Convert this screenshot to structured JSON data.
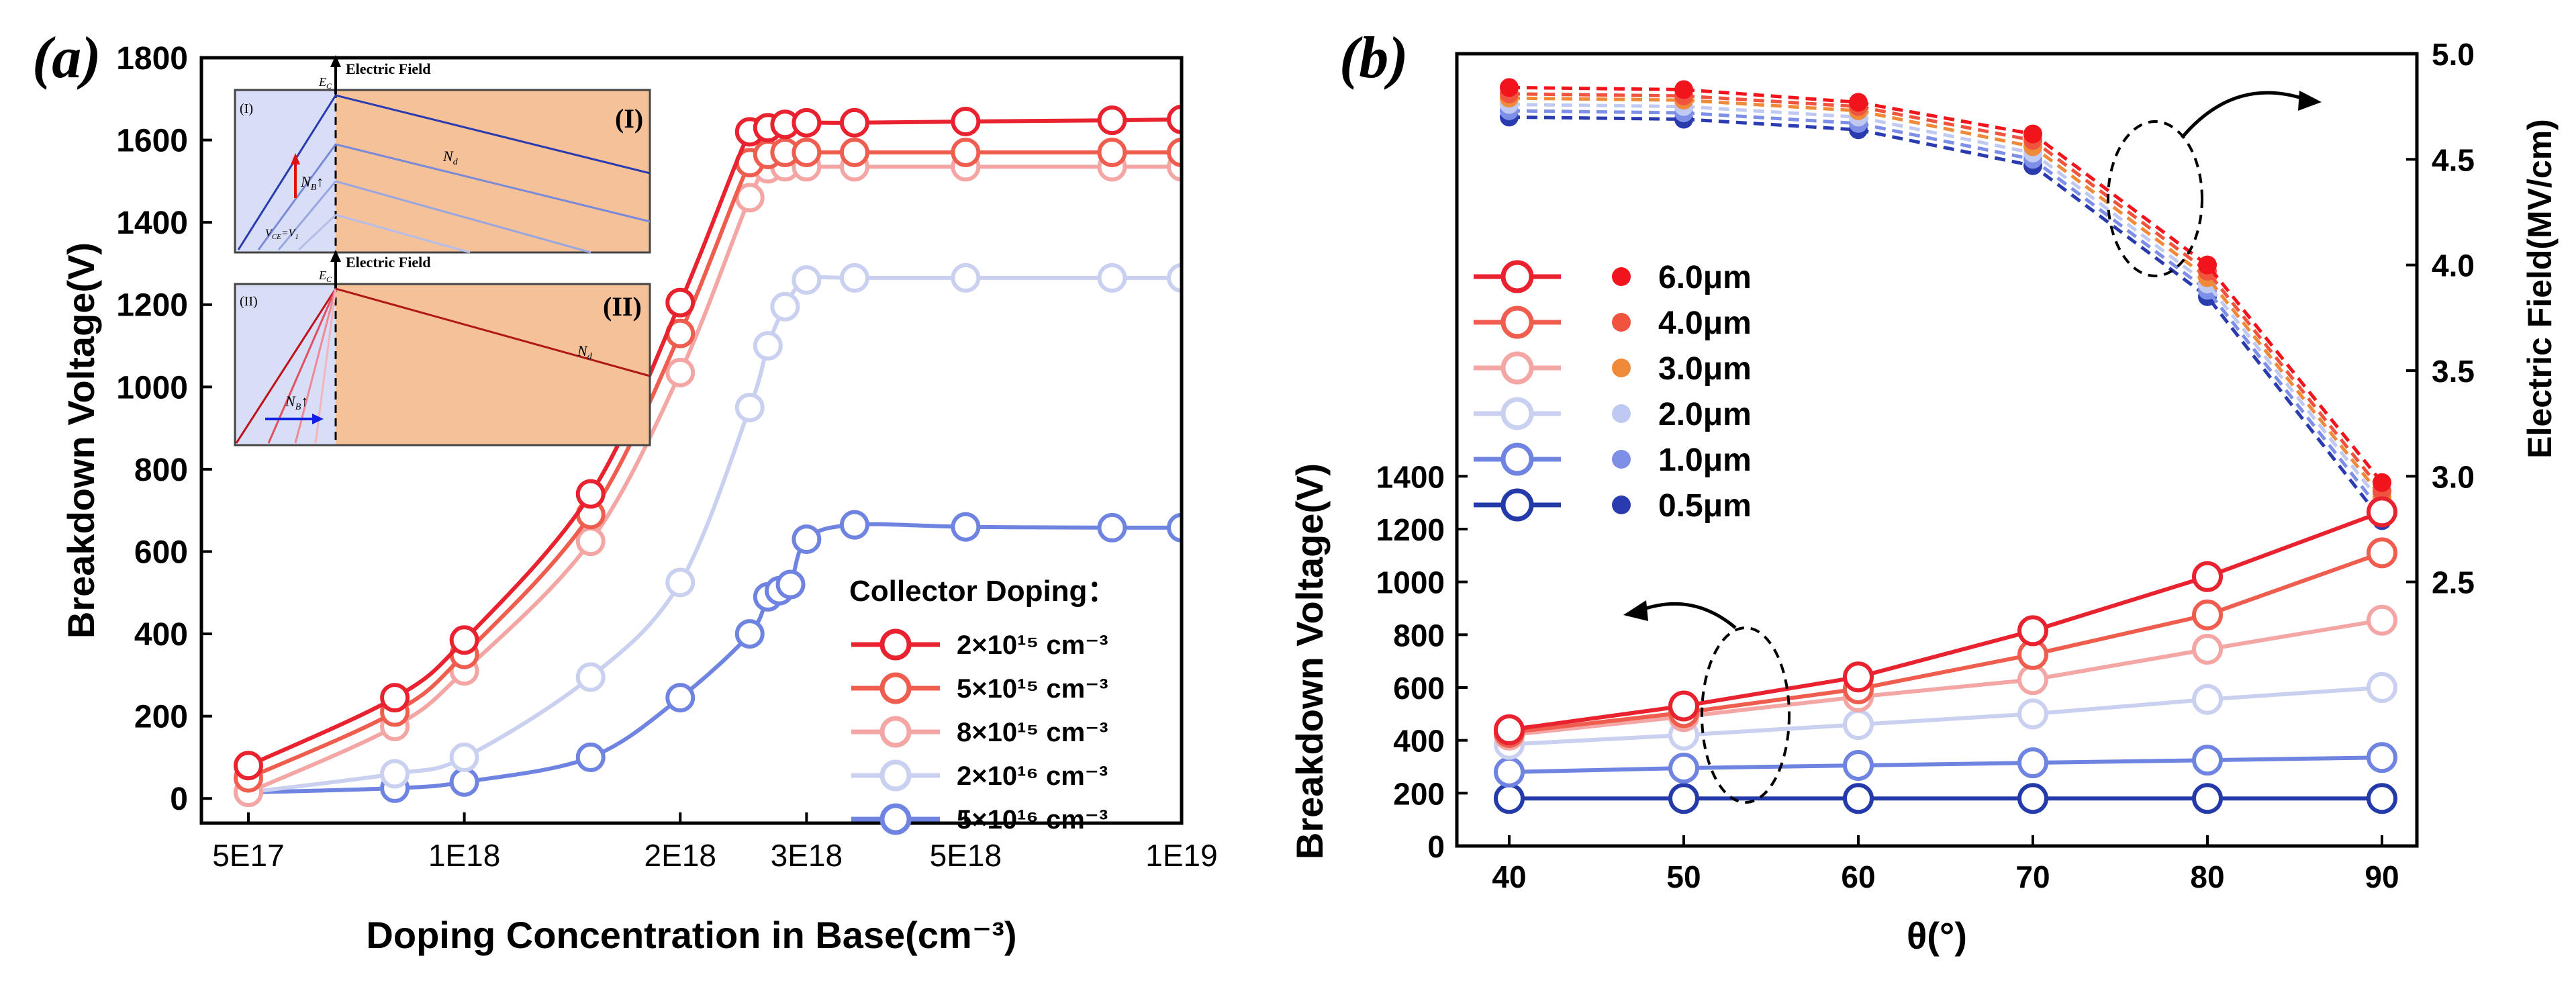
{
  "chart_data": [
    {
      "type": "line",
      "panel_label": "(a)",
      "xlabel": "Doping Concentration in Base(cm⁻³)",
      "ylabel": "Breakdown Voltage(V)",
      "x_scale": "log",
      "xlim": [
        4.3e+17,
        1e+19
      ],
      "ylim": [
        -60,
        1800
      ],
      "x_ticks": [
        {
          "value": 5e+17,
          "label": "5E17"
        },
        {
          "value": 1e+18,
          "label": "1E18"
        },
        {
          "value": 2e+18,
          "label": "2E18"
        },
        {
          "value": 3e+18,
          "label": "3E18"
        },
        {
          "value": 5e+18,
          "label": "5E18"
        },
        {
          "value": 1e+19,
          "label": "1E19"
        }
      ],
      "y_ticks": [
        0,
        200,
        400,
        600,
        800,
        1000,
        1200,
        1400,
        1600,
        1800
      ],
      "legend_title": "Collector Doping：",
      "legend_position": "bottom-right",
      "series": [
        {
          "name": "2×10¹⁵ cm⁻³",
          "color": "#e8222e",
          "x": [
            5e+17,
            8e+17,
            1e+18,
            1.5e+18,
            2e+18,
            2.5e+18,
            2.65e+18,
            2.8e+18,
            3e+18,
            3.5e+18,
            5e+18,
            8e+18,
            1e+19
          ],
          "y": [
            80,
            245,
            385,
            740,
            1205,
            1620,
            1630,
            1638,
            1642,
            1642,
            1645,
            1648,
            1650
          ]
        },
        {
          "name": "5×10¹⁵ cm⁻³",
          "color": "#ee5d4e",
          "x": [
            5e+17,
            8e+17,
            1e+18,
            1.5e+18,
            2e+18,
            2.5e+18,
            2.65e+18,
            2.8e+18,
            3e+18,
            3.5e+18,
            5e+18,
            8e+18,
            1e+19
          ],
          "y": [
            50,
            210,
            350,
            690,
            1130,
            1545,
            1565,
            1570,
            1570,
            1570,
            1570,
            1570,
            1570
          ]
        },
        {
          "name": "8×10¹⁵ cm⁻³",
          "color": "#f4a6a4",
          "x": [
            5e+17,
            8e+17,
            1e+18,
            1.5e+18,
            2e+18,
            2.5e+18,
            2.65e+18,
            2.8e+18,
            3e+18,
            3.5e+18,
            5e+18,
            8e+18,
            1e+19
          ],
          "y": [
            15,
            175,
            310,
            625,
            1035,
            1460,
            1530,
            1535,
            1535,
            1535,
            1535,
            1535,
            1535
          ]
        },
        {
          "name": "2×10¹⁶ cm⁻³",
          "color": "#c9d0f0",
          "x": [
            5e+17,
            8e+17,
            1e+18,
            1.5e+18,
            2e+18,
            2.5e+18,
            2.65e+18,
            2.8e+18,
            3e+18,
            3.5e+18,
            5e+18,
            8e+18,
            1e+19
          ],
          "y": [
            15,
            60,
            100,
            295,
            525,
            950,
            1100,
            1195,
            1260,
            1265,
            1265,
            1265,
            1265
          ]
        },
        {
          "name": "5×10¹⁶ cm⁻³",
          "color": "#6f84e0",
          "x": [
            5e+17,
            8e+17,
            1e+18,
            1.5e+18,
            2e+18,
            2.5e+18,
            2.65e+18,
            2.75e+18,
            2.85e+18,
            3e+18,
            3.5e+18,
            5e+18,
            8e+18,
            1e+19
          ],
          "y": [
            15,
            25,
            40,
            100,
            245,
            400,
            490,
            505,
            520,
            630,
            665,
            660,
            658,
            658
          ]
        }
      ],
      "insets": [
        {
          "label": "(I)",
          "big_label": "(I)",
          "field_label": "Electric Field",
          "ec_label": "E",
          "ec_sub": "C",
          "nb_label": "N",
          "nb_sub": "B",
          "nb_arrow": "↑",
          "nd_label": "N",
          "nd_sub": "d",
          "vce_label": "V",
          "vce_sub": "CE",
          "vce_rest": "=V",
          "vce_sub2": "1"
        },
        {
          "label": "(II)",
          "big_label": "(II)",
          "field_label": "Electric Field",
          "ec_label": "E",
          "ec_sub": "C",
          "nb_label": "N",
          "nb_sub": "B",
          "nb_arrow": "↑",
          "nd_label": "N",
          "nd_sub": "d"
        }
      ]
    },
    {
      "type": "line",
      "panel_label": "(b)",
      "xlabel": "θ(°)",
      "ylabel": "Breakdown Voltage(V)",
      "y2label": "Electric Field(MV/cm)",
      "x": [
        40,
        50,
        60,
        70,
        80,
        90
      ],
      "xlim": [
        37,
        92
      ],
      "ylim": [
        0,
        3000
      ],
      "y2lim": [
        1.25,
        5.0
      ],
      "x_ticks": [
        40,
        50,
        60,
        70,
        80,
        90
      ],
      "y_ticks": [
        0,
        200,
        400,
        600,
        800,
        1000,
        1200,
        1400
      ],
      "y2_ticks": [
        "2.5",
        "3.0",
        "3.5",
        "4.0",
        "4.5",
        "5.0"
      ],
      "legend_position": "middle-left",
      "series": [
        {
          "name": "6.0μm",
          "color": "#e8222e",
          "dot_color": "#f2141d",
          "breakdown_voltage": [
            440,
            530,
            640,
            815,
            1020,
            1265
          ],
          "electric_field": [
            4.84,
            4.83,
            4.77,
            4.62,
            4.0,
            2.97
          ]
        },
        {
          "name": "4.0μm",
          "color": "#ee5d4e",
          "dot_color": "#f0533e",
          "breakdown_voltage": [
            430,
            505,
            595,
            725,
            875,
            1110
          ],
          "electric_field": [
            4.81,
            4.8,
            4.75,
            4.59,
            3.97,
            2.93
          ]
        },
        {
          "name": "3.0μm",
          "color": "#f4a6a4",
          "dot_color": "#ef8a3a",
          "breakdown_voltage": [
            420,
            490,
            565,
            630,
            745,
            855
          ],
          "electric_field": [
            4.79,
            4.78,
            4.73,
            4.56,
            3.94,
            2.9
          ]
        },
        {
          "name": "2.0μm",
          "color": "#c9d0f0",
          "dot_color": "#bfc9f2",
          "breakdown_voltage": [
            385,
            420,
            460,
            500,
            555,
            600
          ],
          "electric_field": [
            4.76,
            4.75,
            4.7,
            4.53,
            3.91,
            2.87
          ]
        },
        {
          "name": "1.0μm",
          "color": "#6f84e0",
          "dot_color": "#7d8fe6",
          "breakdown_voltage": [
            280,
            295,
            305,
            315,
            325,
            335
          ],
          "electric_field": [
            4.73,
            4.72,
            4.67,
            4.5,
            3.88,
            2.83
          ]
        },
        {
          "name": "0.5μm",
          "color": "#243aa8",
          "dot_color": "#2a3bb0",
          "breakdown_voltage": [
            180,
            180,
            180,
            180,
            180,
            180
          ],
          "electric_field": [
            4.7,
            4.69,
            4.64,
            4.47,
            3.85,
            2.79
          ]
        }
      ]
    }
  ]
}
